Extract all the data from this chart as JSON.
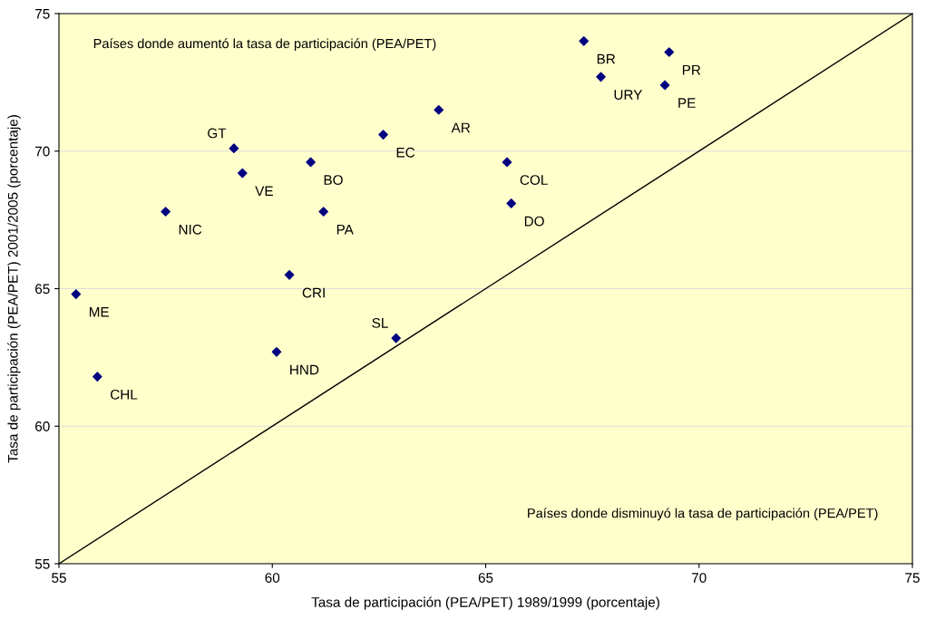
{
  "chart_data": {
    "type": "scatter",
    "xlabel": "Tasa de participación (PEA/PET) 1989/1999 (porcentaje)",
    "ylabel": "Tasa de participación (PEA/PET) 2001/2005 (porcentaje)",
    "xlim": [
      55,
      75
    ],
    "ylim": [
      55,
      75
    ],
    "xticks": [
      55,
      60,
      65,
      70,
      75
    ],
    "yticks": [
      55,
      60,
      65,
      70,
      75
    ],
    "grid": "y",
    "marker": "diamond",
    "series": [
      {
        "color": "#000080",
        "x": [
          67.3,
          69.3,
          67.7,
          69.2,
          63.9,
          62.6,
          59.1,
          60.9,
          65.5,
          59.3,
          65.6,
          57.5,
          61.2,
          60.4,
          55.4,
          62.9,
          60.1,
          55.9
        ],
        "values": [
          74.0,
          73.6,
          72.7,
          72.4,
          71.5,
          70.6,
          70.1,
          69.6,
          69.6,
          69.2,
          68.1,
          67.8,
          67.8,
          65.5,
          64.8,
          63.2,
          62.7,
          61.8
        ]
      },
      {
        "type": "line",
        "color": "#000000",
        "marker": "none",
        "x": [
          55,
          75
        ],
        "values": [
          55,
          75
        ]
      }
    ],
    "annotations": [
      {
        "text": "BR",
        "x": 67.3,
        "y": 74.0
      },
      {
        "text": "PR",
        "x": 69.3,
        "y": 73.6
      },
      {
        "text": "URY",
        "x": 67.7,
        "y": 72.7
      },
      {
        "text": "PE",
        "x": 69.2,
        "y": 72.4
      },
      {
        "text": "AR",
        "x": 63.9,
        "y": 71.5
      },
      {
        "text": "EC",
        "x": 62.6,
        "y": 70.6
      },
      {
        "text": "GT",
        "x": 59.1,
        "y": 70.1
      },
      {
        "text": "BO",
        "x": 60.9,
        "y": 69.6
      },
      {
        "text": "COL",
        "x": 65.5,
        "y": 69.6
      },
      {
        "text": "VE",
        "x": 59.3,
        "y": 69.2
      },
      {
        "text": "DO",
        "x": 65.6,
        "y": 68.1
      },
      {
        "text": "NIC",
        "x": 57.5,
        "y": 67.8
      },
      {
        "text": "PA",
        "x": 61.2,
        "y": 67.8
      },
      {
        "text": "CRI",
        "x": 60.4,
        "y": 65.5
      },
      {
        "text": "ME",
        "x": 55.4,
        "y": 64.8
      },
      {
        "text": "SL",
        "x": 62.9,
        "y": 63.2
      },
      {
        "text": "HND",
        "x": 60.1,
        "y": 62.7
      },
      {
        "text": "CHL",
        "x": 55.9,
        "y": 61.8
      },
      "Países donde aumentó la tasa de participación (PEA/PET)",
      "Países donde disminuyó la tasa de participación (PEA/PET)"
    ]
  }
}
